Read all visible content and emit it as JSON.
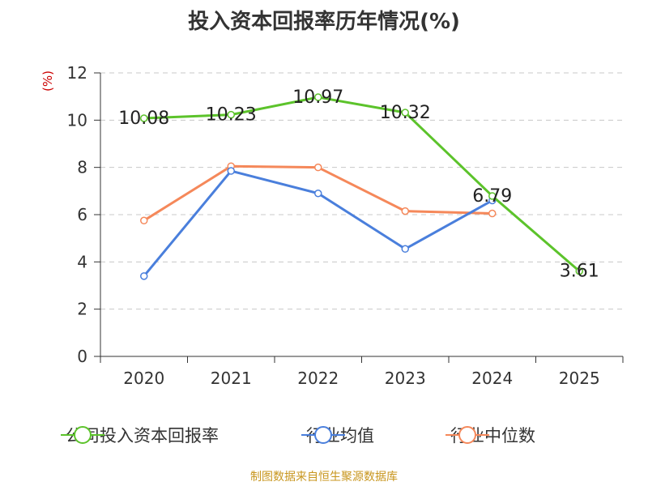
{
  "chart_data": {
    "type": "line",
    "title": "投入资本回报率历年情况(%)",
    "ylabel": "(%)",
    "xlabel": "",
    "categories": [
      "2020",
      "2021",
      "2022",
      "2023",
      "2024",
      "2025"
    ],
    "ylim": [
      0,
      12
    ],
    "yticks": [
      "0",
      "2",
      "4",
      "6",
      "8",
      "10",
      "12"
    ],
    "grid": true,
    "legend_position": "bottom",
    "series": [
      {
        "name": "公司投入资本回报率",
        "color": "#5cc32b",
        "values": [
          10.08,
          10.23,
          10.97,
          10.32,
          6.79,
          3.61
        ],
        "labels": [
          "10.08",
          "10.23",
          "10.97",
          "10.32",
          "6.79",
          "3.61"
        ]
      },
      {
        "name": "行业均值",
        "color": "#4a7fdc",
        "values": [
          3.4,
          7.85,
          6.9,
          4.55,
          6.6,
          null
        ]
      },
      {
        "name": "行业中位数",
        "color": "#f5885a",
        "values": [
          5.75,
          8.05,
          8.0,
          6.15,
          6.05,
          null
        ]
      }
    ]
  },
  "footer": {
    "source": "制图数据来自恒生聚源数据库"
  }
}
